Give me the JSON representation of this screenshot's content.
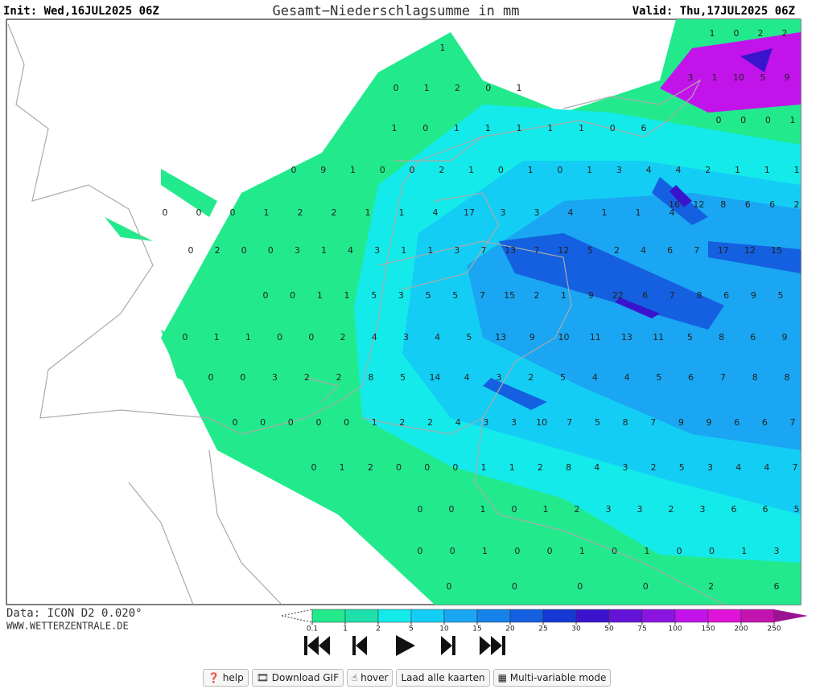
{
  "header": {
    "init": "Init: Wed,16JUL2025 06Z",
    "title": "Gesamt−Niederschlagsumme in mm",
    "valid": "Valid: Thu,17JUL2025 06Z"
  },
  "footer": {
    "data": "Data: ICON D2 0.020°",
    "site": "WWW.WETTERZENTRALE.DE"
  },
  "legend": {
    "ticks": [
      0.1,
      1,
      2,
      5,
      10,
      15,
      20,
      25,
      30,
      50,
      75,
      100,
      150,
      200,
      250
    ],
    "colors": [
      "#22ea8c",
      "#1ee0aa",
      "#14eaea",
      "#14cdf5",
      "#1aa6f2",
      "#1682ea",
      "#1460e0",
      "#1438d4",
      "#3a14cc",
      "#6414d6",
      "#8c14e0",
      "#c214ea",
      "#e014d8",
      "#c414b0",
      "#9a1492"
    ]
  },
  "map": {
    "values": [
      [
        1,
        0,
        2,
        2
      ],
      [
        1
      ],
      [
        3,
        1,
        10,
        5,
        9
      ],
      [
        0,
        1,
        2,
        0,
        1
      ],
      [
        0,
        0,
        0,
        1
      ],
      [
        1,
        0,
        1,
        1,
        1,
        1,
        1,
        0,
        6
      ],
      [
        0,
        9,
        1,
        0,
        0,
        2,
        1,
        0,
        1,
        0,
        1,
        3,
        4,
        4,
        2,
        1,
        1,
        1
      ],
      [
        16,
        12,
        8,
        6,
        6,
        2
      ],
      [
        0,
        0,
        0,
        1,
        2,
        2,
        1,
        1,
        4,
        17,
        3,
        3,
        4,
        1,
        1,
        4
      ],
      [
        0,
        2,
        0,
        0,
        3,
        1,
        4,
        3,
        1,
        1,
        3,
        7,
        13,
        7,
        12,
        5,
        2,
        4,
        6,
        7,
        17,
        12,
        15
      ],
      [
        0,
        0,
        1,
        1,
        5,
        3,
        5,
        5,
        7,
        15,
        2,
        1,
        9,
        22,
        6,
        7,
        8,
        6,
        9,
        5
      ],
      [
        0,
        1,
        1,
        0,
        0,
        2,
        4,
        3,
        4,
        5,
        13,
        9,
        10,
        11,
        13,
        11,
        5,
        8,
        6,
        9
      ],
      [
        0,
        0,
        3,
        2,
        2,
        8,
        5,
        14,
        4,
        3,
        2,
        5,
        4,
        4,
        5,
        6,
        7,
        8,
        8
      ],
      [
        0,
        0,
        0,
        0,
        0,
        1,
        2,
        2,
        4,
        3,
        3,
        10,
        7,
        5,
        8,
        7,
        9,
        9,
        6,
        6,
        7
      ],
      [
        0,
        1,
        2,
        0,
        0,
        0,
        1,
        1,
        2,
        8,
        4,
        3,
        2,
        5,
        3,
        4,
        4,
        7
      ],
      [
        0,
        0,
        1,
        0,
        1,
        2,
        3,
        3,
        2,
        3,
        6,
        6,
        5
      ],
      [
        0,
        0,
        1,
        0,
        0,
        1,
        0,
        1,
        0,
        0,
        1,
        3
      ],
      [
        0,
        0,
        0,
        0,
        2,
        6
      ]
    ]
  },
  "controls": {
    "help": "help",
    "download": "Download GIF",
    "hover": "hover",
    "load": "Laad alle kaarten",
    "multi": "Multi-variable mode"
  }
}
